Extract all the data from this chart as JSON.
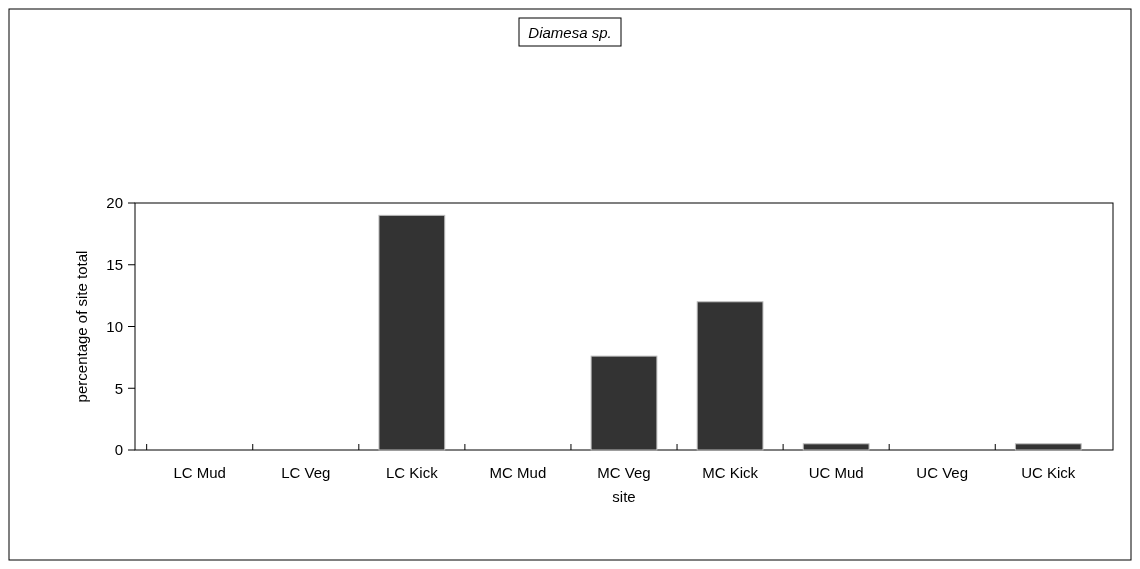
{
  "chart_data": {
    "type": "bar",
    "title": "Diamesa sp.",
    "xlabel": "site",
    "ylabel": "percentage of site total",
    "categories": [
      "LC Mud",
      "LC Veg",
      "LC Kick",
      "MC Mud",
      "MC Veg",
      "MC Kick",
      "UC Mud",
      "UC Veg",
      "UC Kick"
    ],
    "values": [
      0,
      0,
      19,
      0,
      7.6,
      12,
      0.5,
      0,
      0.5
    ],
    "color": "#333333",
    "ylim": [
      0,
      20
    ],
    "yticks": [
      0,
      5,
      10,
      15,
      20
    ],
    "grid": false
  }
}
